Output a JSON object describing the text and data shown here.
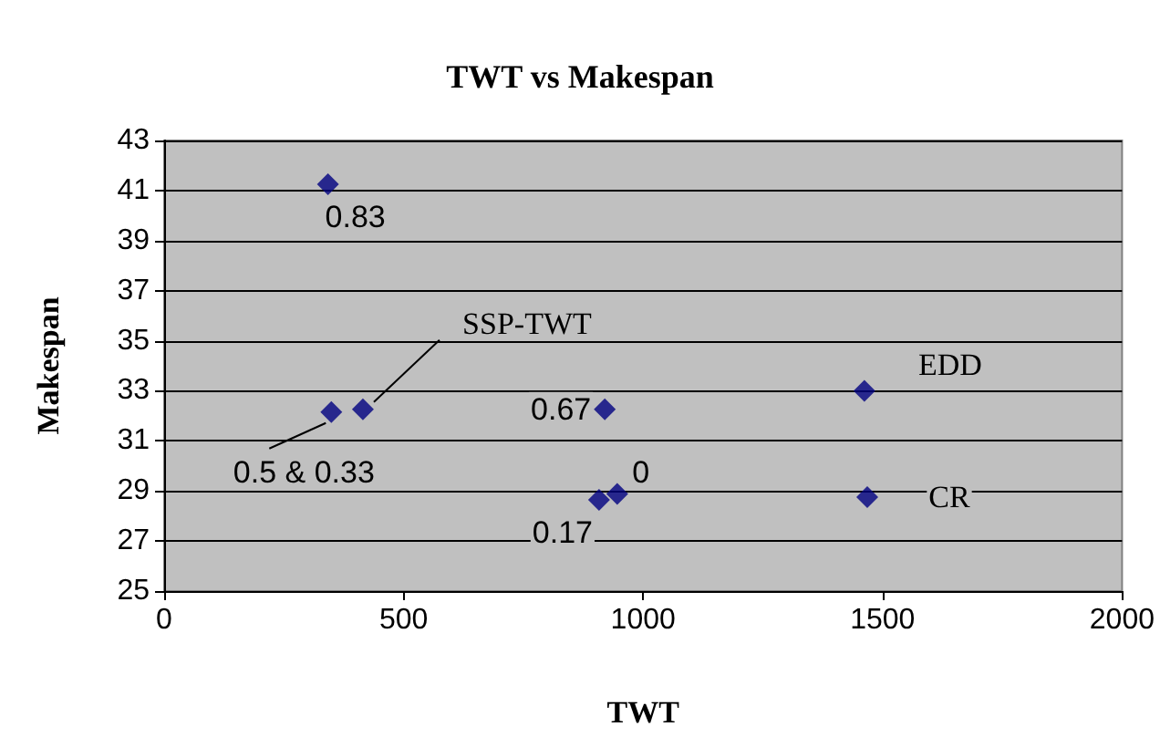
{
  "chart_data": {
    "type": "scatter",
    "title": "TWT vs Makespan",
    "xlabel": "TWT",
    "ylabel": "Makespan",
    "x": [
      342,
      349,
      415,
      920,
      1462,
      908,
      946,
      1468
    ],
    "series": [
      {
        "color": "#000080",
        "values": [
          41.25,
          32.15,
          32.26,
          32.26,
          33,
          28.64,
          28.88,
          28.75
        ]
      }
    ],
    "xlim": [
      0,
      2000
    ],
    "xticks": [
      0,
      500,
      1000,
      1500,
      2000
    ],
    "ylim": [
      25,
      43
    ],
    "yticks": [
      25,
      27,
      29,
      31,
      33,
      35,
      37,
      39,
      41,
      43
    ],
    "grid": "y",
    "marker": "diamond",
    "annotations": [
      {
        "text": "0.83",
        "x": 342,
        "y": 41.25
      },
      {
        "text": "0.5 & 0.33",
        "x": 349,
        "y": 32.15
      },
      {
        "text": "SSP-TWT",
        "x": 415,
        "y": 32.26
      },
      {
        "text": "0.67",
        "x": 920,
        "y": 32.26
      },
      {
        "text": "EDD",
        "x": 1462,
        "y": 33
      },
      {
        "text": "0.17",
        "x": 908,
        "y": 28.64
      },
      {
        "text": "0",
        "x": 946,
        "y": 28.88
      },
      {
        "text": "CR",
        "x": 1468,
        "y": 28.75
      }
    ]
  }
}
